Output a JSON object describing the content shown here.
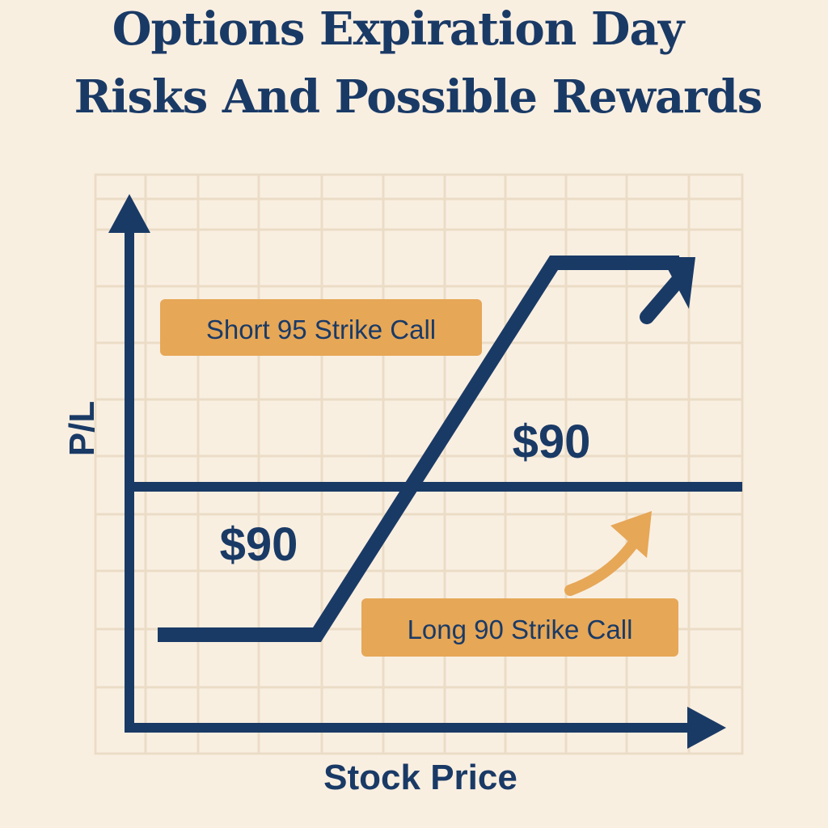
{
  "title": {
    "line1": "Options Expiration Day",
    "line2": "Risks And Possible Rewards"
  },
  "axes": {
    "y_label": "P/L",
    "x_label": "Stock Price"
  },
  "labels": {
    "short_call": "Short 95 Strike Call",
    "long_call": "Long 90 Strike Call",
    "upper_price": "$90",
    "lower_price": "$90"
  },
  "colors": {
    "background": "#f9efe1",
    "navy": "#1a3a66",
    "gold": "#e6a757",
    "grid": "#ebdcc6"
  }
}
